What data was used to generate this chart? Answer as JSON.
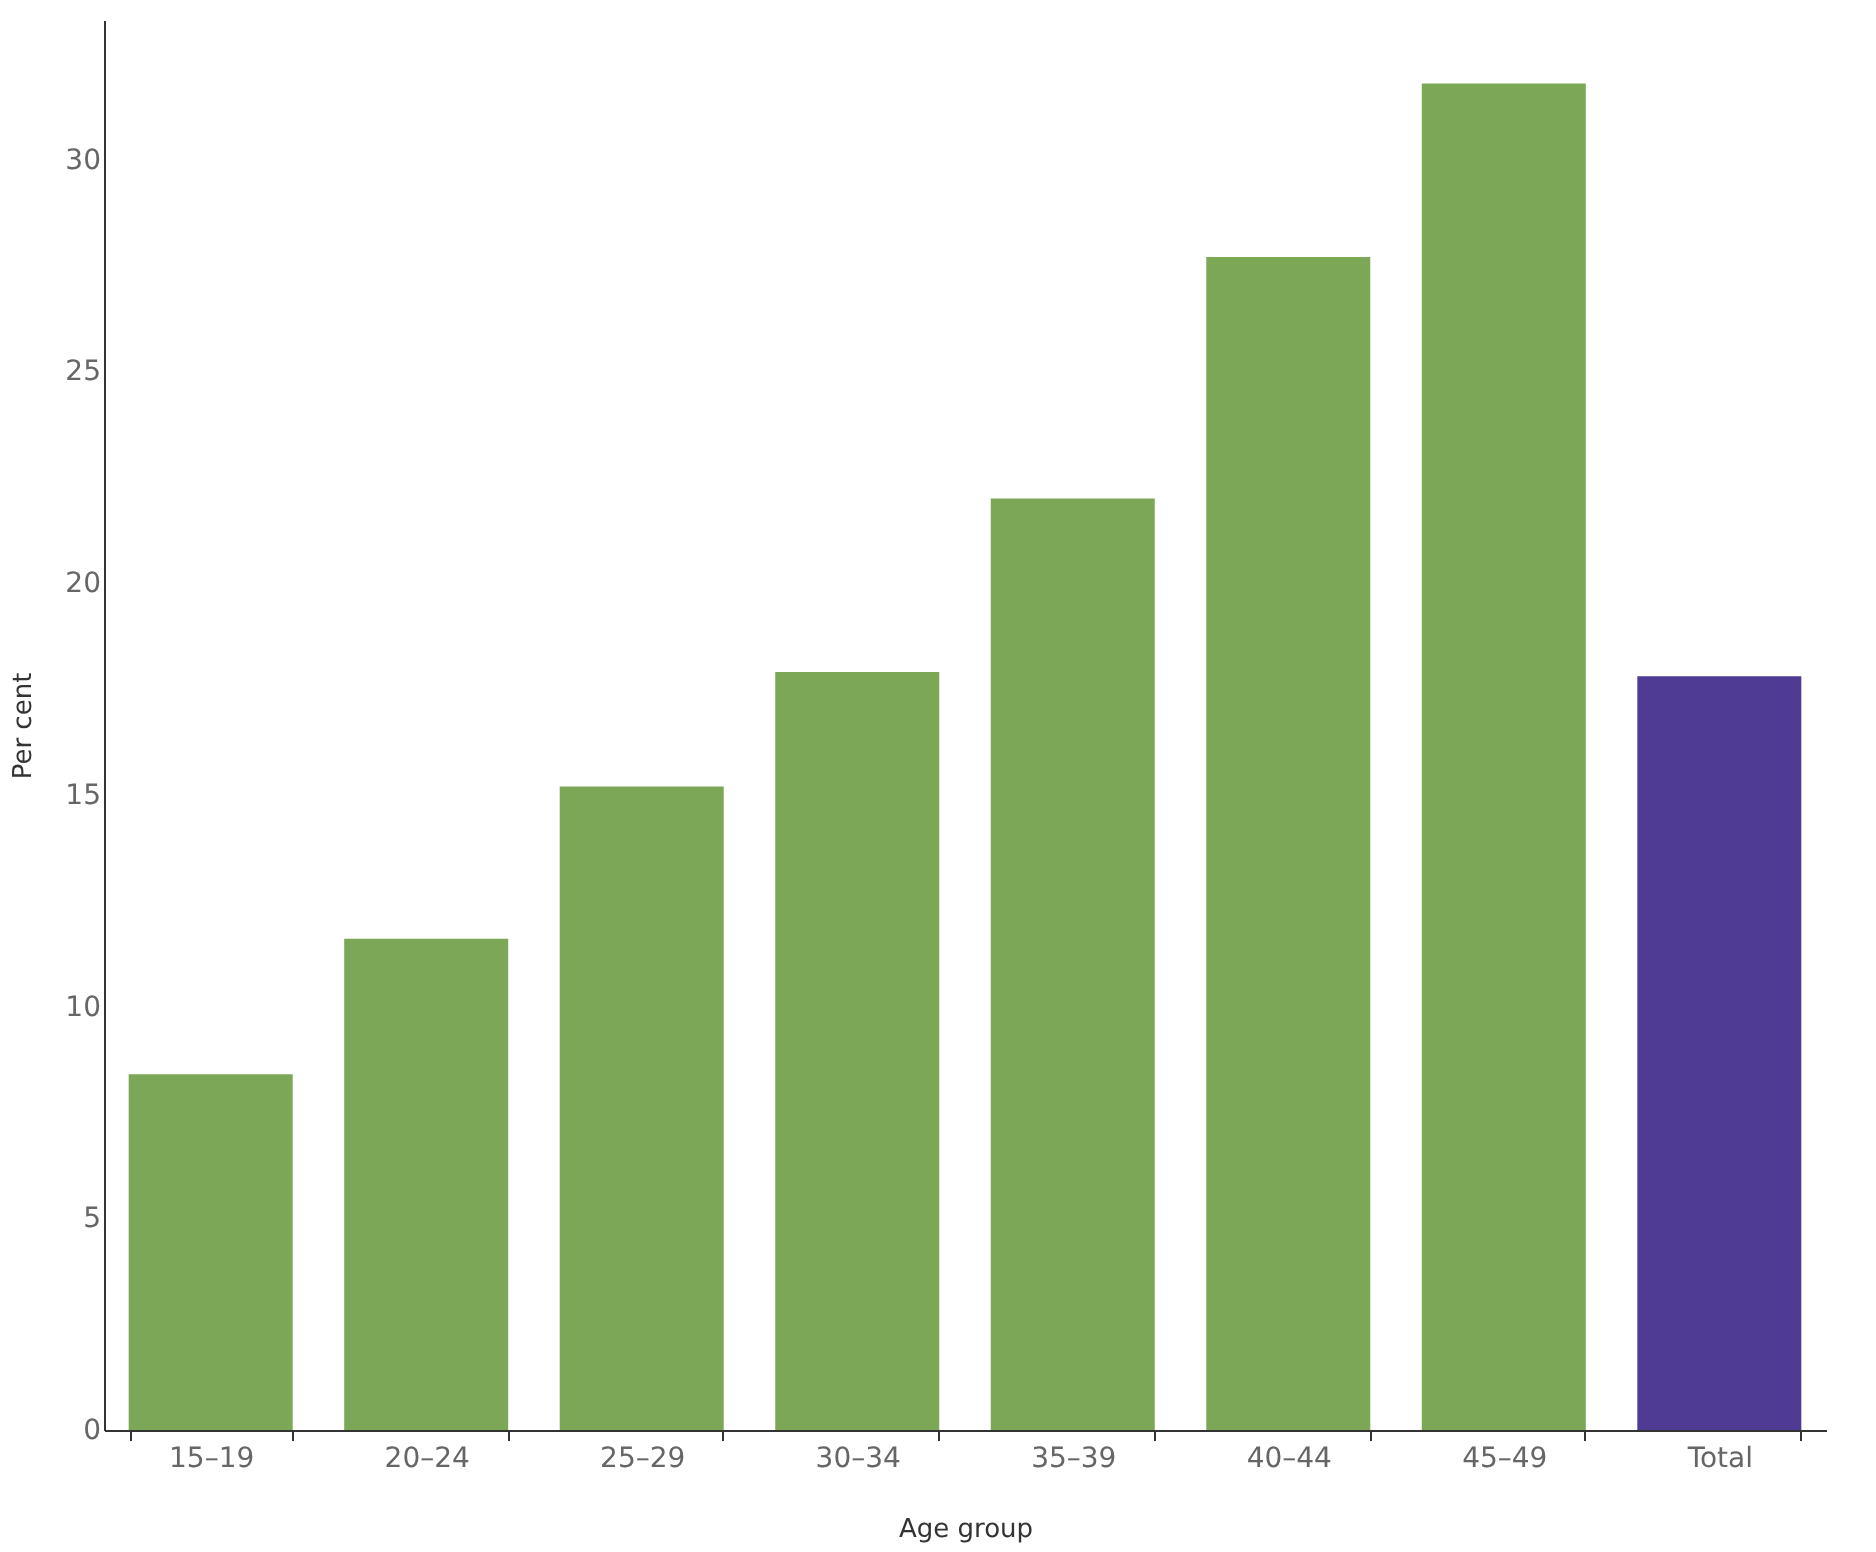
{
  "chart_data": {
    "type": "bar",
    "xlabel": "Age group",
    "ylabel": "Per cent",
    "categories": [
      "15–19",
      "20–24",
      "25–29",
      "30–34",
      "35–39",
      "40–44",
      "45–49",
      "Total"
    ],
    "values": [
      8.4,
      11.6,
      15.2,
      17.9,
      22.0,
      27.7,
      31.8,
      17.8
    ],
    "colors": [
      "#7ca756",
      "#7ca756",
      "#7ca756",
      "#7ca756",
      "#7ca756",
      "#7ca756",
      "#7ca756",
      "#4f3b93"
    ],
    "ylim": [
      0,
      33.3
    ],
    "yticks": [
      0,
      5,
      10,
      15,
      20,
      25,
      30
    ],
    "grid": false
  }
}
